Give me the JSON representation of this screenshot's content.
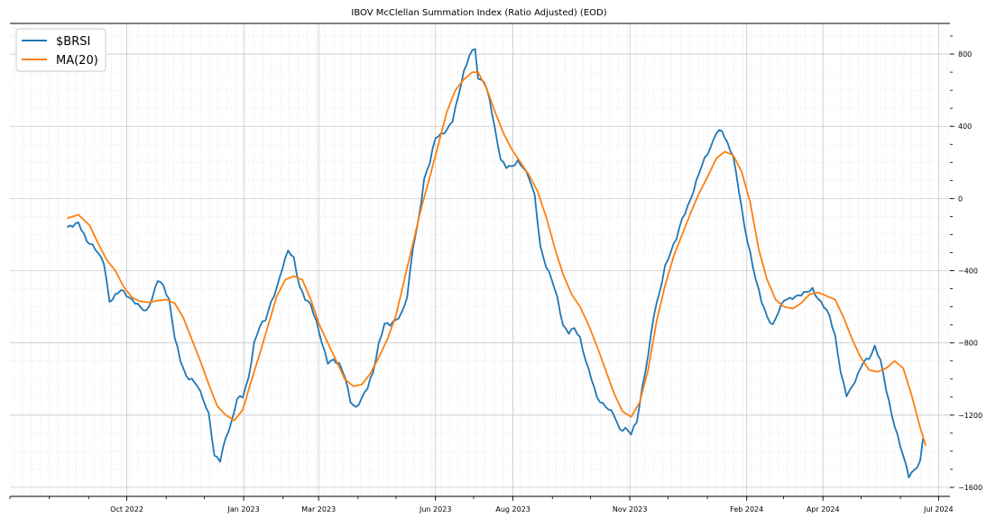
{
  "chart_data": {
    "type": "line",
    "title": "IBOV McClellan Summation Index (Ratio Adjusted) (EOD)",
    "xlabel": "",
    "ylabel": "",
    "x_start": "2022-08-15",
    "x_end": "2024-06-21",
    "x_range": [
      "2022-07-01",
      "2024-07-10"
    ],
    "ylim": [
      -1650,
      970
    ],
    "y_ticks": [
      800,
      400,
      0,
      -400,
      -800,
      -1200,
      -1600
    ],
    "y_tick_labels": [
      "800",
      "400",
      "0",
      "−400",
      "−800",
      "−1200",
      "−1600"
    ],
    "x_ticks": [
      "2022-10-01",
      "2023-01-01",
      "2023-03-01",
      "2023-06-01",
      "2023-08-01",
      "2023-11-01",
      "2024-02-01",
      "2024-04-01",
      "2024-07-01"
    ],
    "x_tick_labels": [
      "Oct 2022",
      "Jan 2023",
      "Mar 2023",
      "Jun 2023",
      "Aug 2023",
      "Nov 2023",
      "Feb 2024",
      "Apr 2024",
      "Jul 2024"
    ],
    "y_axis_side": "right",
    "grid": true,
    "legend": "top-left",
    "series": [
      {
        "name": "$BRSI",
        "color": "#1f77b4",
        "keyframes": [
          [
            0,
            -160
          ],
          [
            4,
            -130
          ],
          [
            7,
            -240
          ],
          [
            10,
            -280
          ],
          [
            13,
            -350
          ],
          [
            15,
            -570
          ],
          [
            17,
            -540
          ],
          [
            19,
            -510
          ],
          [
            22,
            -550
          ],
          [
            24,
            -570
          ],
          [
            26,
            -600
          ],
          [
            28,
            -630
          ],
          [
            30,
            -560
          ],
          [
            32,
            -450
          ],
          [
            34,
            -480
          ],
          [
            36,
            -560
          ],
          [
            38,
            -770
          ],
          [
            40,
            -900
          ],
          [
            42,
            -990
          ],
          [
            44,
            -1000
          ],
          [
            46,
            -1030
          ],
          [
            48,
            -1110
          ],
          [
            50,
            -1200
          ],
          [
            52,
            -1430
          ],
          [
            54,
            -1450
          ],
          [
            56,
            -1320
          ],
          [
            58,
            -1240
          ],
          [
            60,
            -1110
          ],
          [
            62,
            -1100
          ],
          [
            64,
            -1000
          ],
          [
            66,
            -800
          ],
          [
            68,
            -700
          ],
          [
            70,
            -670
          ],
          [
            72,
            -580
          ],
          [
            74,
            -500
          ],
          [
            76,
            -380
          ],
          [
            78,
            -280
          ],
          [
            80,
            -330
          ],
          [
            82,
            -490
          ],
          [
            84,
            -560
          ],
          [
            86,
            -590
          ],
          [
            88,
            -680
          ],
          [
            90,
            -800
          ],
          [
            92,
            -910
          ],
          [
            94,
            -900
          ],
          [
            96,
            -920
          ],
          [
            98,
            -980
          ],
          [
            100,
            -1120
          ],
          [
            102,
            -1160
          ],
          [
            104,
            -1110
          ],
          [
            106,
            -1050
          ],
          [
            108,
            -960
          ],
          [
            110,
            -800
          ],
          [
            112,
            -690
          ],
          [
            114,
            -700
          ],
          [
            116,
            -680
          ],
          [
            118,
            -640
          ],
          [
            120,
            -540
          ],
          [
            122,
            -270
          ],
          [
            124,
            -120
          ],
          [
            126,
            100
          ],
          [
            128,
            200
          ],
          [
            130,
            340
          ],
          [
            132,
            360
          ],
          [
            134,
            380
          ],
          [
            136,
            430
          ],
          [
            138,
            560
          ],
          [
            140,
            700
          ],
          [
            142,
            800
          ],
          [
            144,
            840
          ],
          [
            145,
            660
          ],
          [
            147,
            650
          ],
          [
            149,
            550
          ],
          [
            151,
            380
          ],
          [
            153,
            220
          ],
          [
            155,
            180
          ],
          [
            157,
            175
          ],
          [
            159,
            200
          ],
          [
            161,
            170
          ],
          [
            163,
            120
          ],
          [
            165,
            20
          ],
          [
            167,
            -270
          ],
          [
            169,
            -380
          ],
          [
            171,
            -450
          ],
          [
            173,
            -550
          ],
          [
            175,
            -700
          ],
          [
            177,
            -740
          ],
          [
            179,
            -720
          ],
          [
            181,
            -780
          ],
          [
            183,
            -900
          ],
          [
            185,
            -990
          ],
          [
            187,
            -1100
          ],
          [
            189,
            -1140
          ],
          [
            191,
            -1170
          ],
          [
            193,
            -1200
          ],
          [
            195,
            -1280
          ],
          [
            197,
            -1270
          ],
          [
            199,
            -1300
          ],
          [
            201,
            -1240
          ],
          [
            203,
            -1050
          ],
          [
            205,
            -870
          ],
          [
            207,
            -640
          ],
          [
            209,
            -520
          ],
          [
            211,
            -380
          ],
          [
            213,
            -300
          ],
          [
            215,
            -220
          ],
          [
            217,
            -110
          ],
          [
            219,
            -40
          ],
          [
            221,
            40
          ],
          [
            223,
            140
          ],
          [
            225,
            220
          ],
          [
            227,
            280
          ],
          [
            229,
            370
          ],
          [
            231,
            380
          ],
          [
            233,
            300
          ],
          [
            235,
            230
          ],
          [
            237,
            50
          ],
          [
            239,
            -150
          ],
          [
            241,
            -300
          ],
          [
            243,
            -450
          ],
          [
            245,
            -570
          ],
          [
            247,
            -660
          ],
          [
            249,
            -700
          ],
          [
            251,
            -620
          ],
          [
            253,
            -560
          ],
          [
            255,
            -560
          ],
          [
            257,
            -550
          ],
          [
            259,
            -530
          ],
          [
            261,
            -510
          ],
          [
            263,
            -500
          ],
          [
            265,
            -560
          ],
          [
            267,
            -600
          ],
          [
            269,
            -650
          ],
          [
            271,
            -760
          ],
          [
            273,
            -960
          ],
          [
            275,
            -1090
          ],
          [
            277,
            -1050
          ],
          [
            279,
            -980
          ],
          [
            281,
            -900
          ],
          [
            283,
            -880
          ],
          [
            285,
            -820
          ],
          [
            287,
            -900
          ],
          [
            289,
            -1060
          ],
          [
            291,
            -1200
          ],
          [
            293,
            -1310
          ],
          [
            295,
            -1420
          ],
          [
            297,
            -1540
          ],
          [
            299,
            -1510
          ],
          [
            301,
            -1460
          ],
          [
            302,
            -1330
          ]
        ]
      },
      {
        "name": "MA(20)",
        "color": "#ff7f0e",
        "keyframes": [
          [
            0,
            -110
          ],
          [
            4,
            -90
          ],
          [
            8,
            -150
          ],
          [
            11,
            -250
          ],
          [
            14,
            -340
          ],
          [
            17,
            -400
          ],
          [
            20,
            -490
          ],
          [
            23,
            -550
          ],
          [
            26,
            -570
          ],
          [
            29,
            -575
          ],
          [
            32,
            -565
          ],
          [
            35,
            -560
          ],
          [
            38,
            -580
          ],
          [
            41,
            -660
          ],
          [
            44,
            -780
          ],
          [
            47,
            -900
          ],
          [
            50,
            -1030
          ],
          [
            53,
            -1150
          ],
          [
            56,
            -1200
          ],
          [
            59,
            -1230
          ],
          [
            62,
            -1170
          ],
          [
            65,
            -1010
          ],
          [
            68,
            -860
          ],
          [
            71,
            -700
          ],
          [
            74,
            -540
          ],
          [
            77,
            -450
          ],
          [
            80,
            -430
          ],
          [
            83,
            -450
          ],
          [
            86,
            -560
          ],
          [
            89,
            -700
          ],
          [
            92,
            -800
          ],
          [
            95,
            -900
          ],
          [
            98,
            -1000
          ],
          [
            101,
            -1040
          ],
          [
            104,
            -1030
          ],
          [
            107,
            -970
          ],
          [
            110,
            -880
          ],
          [
            113,
            -780
          ],
          [
            116,
            -650
          ],
          [
            119,
            -450
          ],
          [
            122,
            -250
          ],
          [
            125,
            -50
          ],
          [
            128,
            120
          ],
          [
            131,
            300
          ],
          [
            134,
            480
          ],
          [
            137,
            600
          ],
          [
            140,
            660
          ],
          [
            143,
            700
          ],
          [
            145,
            700
          ],
          [
            148,
            610
          ],
          [
            151,
            480
          ],
          [
            154,
            360
          ],
          [
            157,
            270
          ],
          [
            160,
            200
          ],
          [
            163,
            130
          ],
          [
            166,
            40
          ],
          [
            169,
            -100
          ],
          [
            172,
            -270
          ],
          [
            175,
            -420
          ],
          [
            178,
            -530
          ],
          [
            181,
            -600
          ],
          [
            184,
            -700
          ],
          [
            187,
            -820
          ],
          [
            190,
            -950
          ],
          [
            193,
            -1080
          ],
          [
            196,
            -1180
          ],
          [
            199,
            -1210
          ],
          [
            202,
            -1130
          ],
          [
            205,
            -950
          ],
          [
            208,
            -680
          ],
          [
            211,
            -480
          ],
          [
            214,
            -320
          ],
          [
            217,
            -200
          ],
          [
            220,
            -80
          ],
          [
            223,
            30
          ],
          [
            226,
            120
          ],
          [
            229,
            220
          ],
          [
            232,
            260
          ],
          [
            235,
            240
          ],
          [
            238,
            150
          ],
          [
            241,
            -20
          ],
          [
            244,
            -280
          ],
          [
            247,
            -450
          ],
          [
            250,
            -560
          ],
          [
            253,
            -600
          ],
          [
            256,
            -610
          ],
          [
            259,
            -580
          ],
          [
            262,
            -530
          ],
          [
            265,
            -520
          ],
          [
            268,
            -540
          ],
          [
            271,
            -560
          ],
          [
            274,
            -660
          ],
          [
            277,
            -780
          ],
          [
            280,
            -880
          ],
          [
            283,
            -950
          ],
          [
            286,
            -960
          ],
          [
            289,
            -940
          ],
          [
            292,
            -900
          ],
          [
            295,
            -940
          ],
          [
            298,
            -1090
          ],
          [
            301,
            -1270
          ],
          [
            303,
            -1370
          ]
        ]
      }
    ]
  }
}
